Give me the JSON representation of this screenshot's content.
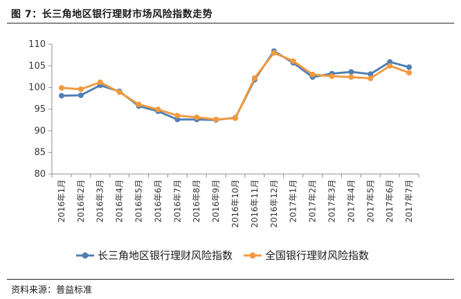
{
  "figure": {
    "title": "图 7：长三角地区银行理财市场风险指数走势",
    "source": "资料来源：普益标准"
  },
  "chart_data": {
    "type": "line",
    "categories": [
      "2016年1月",
      "2016年2月",
      "2016年3月",
      "2016年4月",
      "2016年5月",
      "2016年6月",
      "2016年7月",
      "2016年8月",
      "2016年9月",
      "2016年10月",
      "2016年11月",
      "2016年12月",
      "2017年1月",
      "2017年2月",
      "2017年3月",
      "2017年4月",
      "2017年5月",
      "2017年6月",
      "2017年7月"
    ],
    "series": [
      {
        "name": "长三角地区银行理财风险指数",
        "color": "#4f7fb3",
        "values": [
          98.1,
          98.2,
          100.5,
          99.1,
          95.7,
          94.5,
          92.6,
          92.6,
          92.5,
          93.0,
          101.8,
          108.4,
          105.7,
          102.4,
          103.2,
          103.6,
          103.1,
          105.9,
          104.7
        ]
      },
      {
        "name": "全国银行理财风险指数",
        "color": "#f19a3e",
        "values": [
          99.9,
          99.6,
          101.2,
          98.9,
          96.1,
          94.9,
          93.5,
          93.1,
          92.6,
          92.9,
          102.2,
          108.0,
          106.1,
          103.0,
          102.6,
          102.4,
          102.1,
          105.0,
          103.4
        ]
      }
    ],
    "yticks": [
      80,
      85,
      90,
      95,
      100,
      105,
      110
    ],
    "ylim": [
      80,
      110
    ],
    "grid": false,
    "legend_position": "bottom"
  }
}
